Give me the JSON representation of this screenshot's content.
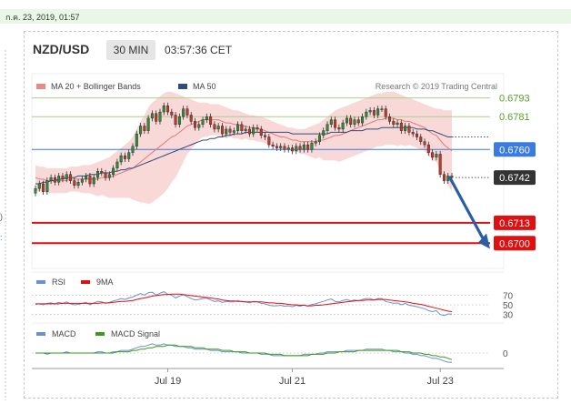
{
  "timestamp": "ก.ค. 23, 2019, 01:57",
  "chart_data": {
    "type": "candlestick",
    "header": {
      "pair": "NZD/USD",
      "timeframe": "30 MIN",
      "time": "03:57:36 CET"
    },
    "legend": [
      {
        "label": "MA 20 + Bollinger Bands",
        "color": "#e88a8a"
      },
      {
        "label": "MA 50",
        "color": "#2f4d7a"
      }
    ],
    "watermark": "Research © 2019 Trading Central",
    "price_range": [
      0.6685,
      0.6805
    ],
    "levels": [
      {
        "label": "0.6793",
        "value": 0.6793,
        "kind": "resistance",
        "color": "#a8d08d"
      },
      {
        "label": "0.6781",
        "value": 0.6781,
        "kind": "resistance",
        "color": "#a8d08d"
      },
      {
        "label": "0.6760",
        "value": 0.676,
        "kind": "pivot",
        "color": "#3a7be0"
      },
      {
        "label": "0.6742",
        "value": 0.6742,
        "kind": "last",
        "color": "#333333"
      },
      {
        "label": "0.6713",
        "value": 0.6713,
        "kind": "support",
        "color": "#e01010"
      },
      {
        "label": "0.6700",
        "value": 0.67,
        "kind": "support",
        "color": "#e01010"
      }
    ],
    "x_ticks": [
      {
        "label": "Jul 19",
        "index": 34
      },
      {
        "label": "Jul 21",
        "index": 66
      },
      {
        "label": "Jul 23",
        "index": 104
      }
    ],
    "close": [
      0.6735,
      0.6738,
      0.6733,
      0.674,
      0.6742,
      0.6739,
      0.6743,
      0.6741,
      0.6744,
      0.674,
      0.6737,
      0.6739,
      0.6741,
      0.6743,
      0.6738,
      0.6742,
      0.6746,
      0.6745,
      0.6742,
      0.6744,
      0.6748,
      0.6752,
      0.6756,
      0.6754,
      0.6758,
      0.6762,
      0.677,
      0.6775,
      0.6772,
      0.678,
      0.6783,
      0.6778,
      0.6784,
      0.6788,
      0.6784,
      0.6782,
      0.6776,
      0.6781,
      0.6786,
      0.6782,
      0.6778,
      0.6774,
      0.6776,
      0.6779,
      0.6781,
      0.6776,
      0.6773,
      0.6775,
      0.677,
      0.6773,
      0.6771,
      0.6772,
      0.6776,
      0.6772,
      0.6773,
      0.677,
      0.6774,
      0.6773,
      0.6769,
      0.6768,
      0.6763,
      0.6762,
      0.6761,
      0.6762,
      0.676,
      0.6761,
      0.6759,
      0.6762,
      0.676,
      0.6763,
      0.676,
      0.6764,
      0.6765,
      0.6769,
      0.6772,
      0.6776,
      0.6779,
      0.6774,
      0.6773,
      0.6777,
      0.678,
      0.6776,
      0.6779,
      0.6777,
      0.6781,
      0.6784,
      0.6785,
      0.6782,
      0.6786,
      0.6786,
      0.6781,
      0.6778,
      0.6776,
      0.6777,
      0.6772,
      0.6775,
      0.6771,
      0.677,
      0.6768,
      0.6765,
      0.6763,
      0.6758,
      0.6755,
      0.6757,
      0.6744,
      0.674,
      0.6743,
      0.6742
    ],
    "ma20": [
      0.6742,
      0.6741,
      0.6741,
      0.674,
      0.674,
      0.674,
      0.674,
      0.674,
      0.674,
      0.6741,
      0.6741,
      0.6741,
      0.6741,
      0.6741,
      0.6741,
      0.6741,
      0.6741,
      0.6742,
      0.6742,
      0.6742,
      0.6743,
      0.6744,
      0.6745,
      0.6746,
      0.6747,
      0.6748,
      0.675,
      0.6752,
      0.6754,
      0.6756,
      0.6758,
      0.676,
      0.6762,
      0.6764,
      0.6766,
      0.6768,
      0.6769,
      0.6771,
      0.6773,
      0.6775,
      0.6776,
      0.6777,
      0.6778,
      0.6779,
      0.6779,
      0.6779,
      0.6779,
      0.6779,
      0.6778,
      0.6777,
      0.6777,
      0.6776,
      0.6776,
      0.6775,
      0.6775,
      0.6774,
      0.6774,
      0.6773,
      0.6773,
      0.6772,
      0.6771,
      0.677,
      0.6769,
      0.6768,
      0.6768,
      0.6767,
      0.6766,
      0.6766,
      0.6765,
      0.6765,
      0.6765,
      0.6765,
      0.6765,
      0.6766,
      0.6766,
      0.6767,
      0.6768,
      0.6769,
      0.6769,
      0.677,
      0.6771,
      0.6772,
      0.6773,
      0.6774,
      0.6775,
      0.6776,
      0.6777,
      0.6778,
      0.6779,
      0.6779,
      0.678,
      0.678,
      0.678,
      0.6779,
      0.6779,
      0.6778,
      0.6778,
      0.6777,
      0.6776,
      0.6775,
      0.6774,
      0.6772,
      0.677,
      0.6769,
      0.6766,
      0.6763,
      0.6761,
      0.6759
    ],
    "bb_upper": [
      0.675,
      0.6749,
      0.6749,
      0.6748,
      0.6748,
      0.6748,
      0.6748,
      0.6748,
      0.6748,
      0.6749,
      0.6749,
      0.6749,
      0.675,
      0.675,
      0.675,
      0.6751,
      0.6752,
      0.6753,
      0.6754,
      0.6755,
      0.6757,
      0.6759,
      0.6761,
      0.6763,
      0.6765,
      0.6768,
      0.6773,
      0.6778,
      0.6782,
      0.6787,
      0.679,
      0.6792,
      0.6794,
      0.6796,
      0.6797,
      0.6797,
      0.6796,
      0.6795,
      0.6794,
      0.6793,
      0.6792,
      0.6791,
      0.679,
      0.679,
      0.679,
      0.6789,
      0.6789,
      0.6789,
      0.6788,
      0.6787,
      0.6786,
      0.6785,
      0.6785,
      0.6784,
      0.6783,
      0.6782,
      0.6782,
      0.6781,
      0.6781,
      0.678,
      0.6779,
      0.6778,
      0.6777,
      0.6776,
      0.6775,
      0.6774,
      0.6774,
      0.6773,
      0.6773,
      0.6773,
      0.6774,
      0.6775,
      0.6776,
      0.6777,
      0.6779,
      0.6781,
      0.6783,
      0.6785,
      0.6786,
      0.6787,
      0.6788,
      0.6789,
      0.679,
      0.6791,
      0.6792,
      0.6793,
      0.6794,
      0.6795,
      0.6796,
      0.6796,
      0.6797,
      0.6797,
      0.6797,
      0.6796,
      0.6795,
      0.6794,
      0.6793,
      0.6792,
      0.6791,
      0.679,
      0.6789,
      0.6788,
      0.6787,
      0.6786,
      0.6786,
      0.6785,
      0.6785,
      0.6785
    ],
    "bb_lower": [
      0.6734,
      0.6733,
      0.6733,
      0.6732,
      0.6732,
      0.6732,
      0.6732,
      0.6732,
      0.6732,
      0.6733,
      0.6733,
      0.6733,
      0.6732,
      0.6732,
      0.6732,
      0.6731,
      0.673,
      0.6731,
      0.673,
      0.6729,
      0.6729,
      0.6729,
      0.6729,
      0.6729,
      0.6729,
      0.6728,
      0.6727,
      0.6726,
      0.6726,
      0.6725,
      0.6726,
      0.6728,
      0.673,
      0.6732,
      0.6735,
      0.6739,
      0.6742,
      0.6747,
      0.6752,
      0.6757,
      0.676,
      0.6763,
      0.6766,
      0.6768,
      0.6768,
      0.6769,
      0.6769,
      0.6769,
      0.6768,
      0.6767,
      0.6768,
      0.6767,
      0.6767,
      0.6766,
      0.6767,
      0.6766,
      0.6766,
      0.6765,
      0.6765,
      0.6764,
      0.6763,
      0.6762,
      0.6761,
      0.676,
      0.6761,
      0.676,
      0.6758,
      0.6759,
      0.6757,
      0.6757,
      0.6756,
      0.6755,
      0.6754,
      0.6755,
      0.6753,
      0.6753,
      0.6753,
      0.6753,
      0.6752,
      0.6753,
      0.6754,
      0.6755,
      0.6756,
      0.6757,
      0.6758,
      0.6759,
      0.676,
      0.6761,
      0.6762,
      0.6762,
      0.6763,
      0.6763,
      0.6763,
      0.6762,
      0.6763,
      0.6762,
      0.6763,
      0.6762,
      0.6761,
      0.676,
      0.6759,
      0.6756,
      0.6753,
      0.6752,
      0.6746,
      0.6741,
      0.6737,
      0.6733
    ],
    "ma50": [
      0.6738,
      0.6738,
      0.6739,
      0.6739,
      0.674,
      0.674,
      0.6741,
      0.6741,
      0.6742,
      0.6742,
      0.6742,
      0.6743,
      0.6743,
      0.6743,
      0.6744,
      0.6744,
      0.6744,
      0.6745,
      0.6745,
      0.6745,
      0.6746,
      0.6746,
      0.6747,
      0.6747,
      0.6748,
      0.6748,
      0.6749,
      0.675,
      0.6751,
      0.6752,
      0.6753,
      0.6754,
      0.6755,
      0.6756,
      0.6757,
      0.6758,
      0.6759,
      0.676,
      0.6761,
      0.6762,
      0.6763,
      0.6764,
      0.6765,
      0.6766,
      0.6766,
      0.6767,
      0.6767,
      0.6768,
      0.6768,
      0.6769,
      0.6769,
      0.677,
      0.677,
      0.677,
      0.6771,
      0.6771,
      0.6771,
      0.6771,
      0.6771,
      0.6771,
      0.6771,
      0.6771,
      0.6771,
      0.6771,
      0.6771,
      0.6771,
      0.677,
      0.677,
      0.677,
      0.677,
      0.677,
      0.677,
      0.677,
      0.677,
      0.677,
      0.677,
      0.6771,
      0.6771,
      0.6771,
      0.6771,
      0.6771,
      0.6772,
      0.6772,
      0.6772,
      0.6772,
      0.6773,
      0.6773,
      0.6773,
      0.6773,
      0.6774,
      0.6774,
      0.6774,
      0.6774,
      0.6774,
      0.6774,
      0.6774,
      0.6774,
      0.6774,
      0.6773,
      0.6773,
      0.6773,
      0.6772,
      0.6772,
      0.6771,
      0.677,
      0.6769,
      0.6768,
      0.6768
    ],
    "projection": {
      "from_index": 106,
      "from_price": 0.6742,
      "to_index": 120,
      "to_price": 0.6701,
      "color": "#2a5da8"
    },
    "rsi": {
      "legend": [
        {
          "label": "RSI",
          "color": "#6a8fd6"
        },
        {
          "label": "9MA",
          "color": "#e01010"
        }
      ],
      "ticks": [
        "70",
        "50",
        "30"
      ],
      "range": [
        20,
        80
      ],
      "rsi": [
        51,
        52,
        50,
        53,
        54,
        52,
        55,
        53,
        56,
        52,
        50,
        51,
        53,
        55,
        50,
        54,
        57,
        56,
        53,
        55,
        58,
        60,
        63,
        61,
        64,
        66,
        70,
        73,
        70,
        75,
        76,
        70,
        74,
        77,
        72,
        70,
        64,
        68,
        71,
        67,
        63,
        60,
        61,
        63,
        64,
        60,
        57,
        58,
        55,
        57,
        56,
        56,
        59,
        56,
        56,
        54,
        57,
        56,
        53,
        52,
        49,
        48,
        48,
        49,
        47,
        48,
        46,
        49,
        47,
        50,
        47,
        51,
        52,
        55,
        57,
        60,
        62,
        57,
        56,
        59,
        61,
        58,
        60,
        58,
        61,
        63,
        63,
        60,
        63,
        63,
        57,
        55,
        53,
        54,
        50,
        53,
        49,
        48,
        46,
        44,
        42,
        38,
        36,
        38,
        30,
        28,
        31,
        31
      ],
      "ma9": [
        52,
        52,
        52,
        52,
        52,
        52,
        52,
        53,
        53,
        53,
        53,
        53,
        53,
        53,
        53,
        53,
        53,
        54,
        54,
        54,
        55,
        56,
        57,
        57,
        58,
        59,
        61,
        63,
        64,
        66,
        68,
        69,
        70,
        71,
        71,
        72,
        72,
        72,
        71,
        70,
        69,
        68,
        67,
        66,
        65,
        64,
        63,
        62,
        60,
        59,
        58,
        58,
        57,
        57,
        56,
        56,
        56,
        56,
        56,
        55,
        54,
        54,
        53,
        53,
        52,
        51,
        50,
        50,
        49,
        49,
        48,
        48,
        49,
        49,
        50,
        51,
        52,
        53,
        54,
        55,
        56,
        57,
        58,
        59,
        59,
        60,
        60,
        60,
        61,
        61,
        61,
        60,
        59,
        58,
        57,
        56,
        55,
        53,
        52,
        51,
        49,
        47,
        45,
        43,
        41,
        39,
        37,
        36
      ]
    },
    "macd": {
      "legend": [
        {
          "label": "MACD",
          "color": "#6a8fd6"
        },
        {
          "label": "MACD Signal",
          "color": "#3a9a1a"
        }
      ],
      "ticks": [
        "0"
      ],
      "range": [
        -0.0009,
        0.0009
      ],
      "macd": [
        0.0,
        0.0,
        0.0,
        -0.0001,
        0.0,
        0.0,
        0.0,
        0.0,
        0.0001,
        0.0,
        0.0,
        0.0,
        0.0,
        0.0,
        0.0,
        0.0,
        0.0001,
        0.0001,
        0.0,
        0.0,
        0.0001,
        0.0001,
        0.0002,
        0.0002,
        0.0002,
        0.0003,
        0.0004,
        0.0005,
        0.0005,
        0.0006,
        0.0007,
        0.0006,
        0.0006,
        0.0007,
        0.0006,
        0.0006,
        0.0005,
        0.0005,
        0.0005,
        0.0004,
        0.0004,
        0.0003,
        0.0003,
        0.0003,
        0.0003,
        0.0002,
        0.0002,
        0.0002,
        0.0001,
        0.0001,
        0.0001,
        0.0001,
        0.0001,
        0.0,
        0.0,
        0.0,
        0.0,
        0.0,
        -0.0001,
        -0.0001,
        -0.0001,
        -0.0002,
        -0.0002,
        -0.0002,
        -0.0002,
        -0.0002,
        -0.0002,
        -0.0002,
        -0.0002,
        -0.0001,
        -0.0001,
        -0.0001,
        -0.0001,
        0.0,
        0.0,
        0.0001,
        0.0001,
        0.0001,
        0.0001,
        0.0001,
        0.0002,
        0.0002,
        0.0002,
        0.0002,
        0.0002,
        0.0003,
        0.0003,
        0.0003,
        0.0003,
        0.0003,
        0.0002,
        0.0002,
        0.0001,
        0.0001,
        0.0001,
        0.0,
        0.0,
        -0.0001,
        -0.0001,
        -0.0002,
        -0.0002,
        -0.0003,
        -0.0004,
        -0.0004,
        -0.0005,
        -0.0006,
        -0.0007,
        -0.0007
      ],
      "signal": [
        0.0,
        0.0,
        0.0,
        0.0,
        0.0,
        0.0,
        0.0,
        0.0,
        0.0,
        0.0,
        0.0,
        0.0,
        0.0,
        0.0,
        0.0,
        0.0,
        0.0,
        0.0,
        0.0,
        0.0,
        0.0,
        0.0001,
        0.0001,
        0.0001,
        0.0001,
        0.0002,
        0.0002,
        0.0003,
        0.0003,
        0.0004,
        0.0004,
        0.0005,
        0.0005,
        0.0005,
        0.0006,
        0.0006,
        0.0006,
        0.0005,
        0.0005,
        0.0005,
        0.0005,
        0.0004,
        0.0004,
        0.0004,
        0.0003,
        0.0003,
        0.0003,
        0.0003,
        0.0002,
        0.0002,
        0.0002,
        0.0001,
        0.0001,
        0.0001,
        0.0001,
        0.0,
        0.0,
        0.0,
        0.0,
        0.0,
        -0.0001,
        -0.0001,
        -0.0001,
        -0.0001,
        -0.0002,
        -0.0002,
        -0.0002,
        -0.0002,
        -0.0002,
        -0.0002,
        -0.0002,
        -0.0001,
        -0.0001,
        -0.0001,
        -0.0001,
        0.0,
        0.0,
        0.0,
        0.0001,
        0.0001,
        0.0001,
        0.0001,
        0.0001,
        0.0002,
        0.0002,
        0.0002,
        0.0002,
        0.0002,
        0.0002,
        0.0002,
        0.0002,
        0.0002,
        0.0002,
        0.0002,
        0.0001,
        0.0001,
        0.0001,
        0.0,
        0.0,
        0.0,
        -0.0001,
        -0.0001,
        -0.0002,
        -0.0002,
        -0.0003,
        -0.0003,
        -0.0004,
        -0.0005
      ]
    }
  }
}
